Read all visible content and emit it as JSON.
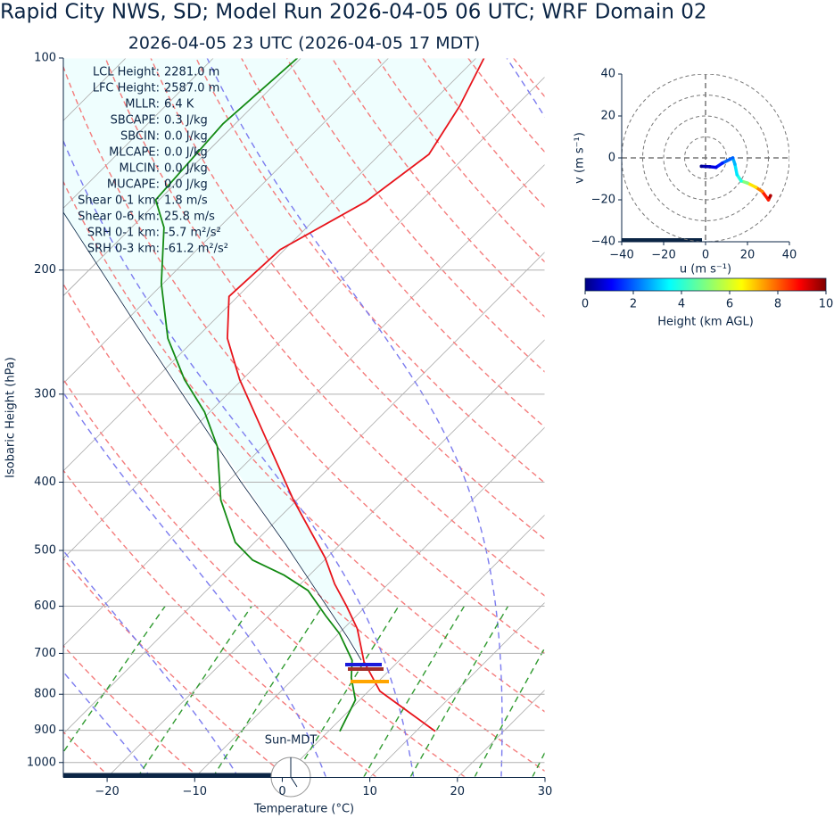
{
  "chart_data": [
    {
      "type": "skewt",
      "title": "Rapid City NWS, SD; Model Run 2026-04-05 06 UTC; WRF Domain 02",
      "subtitle": "2026-04-05 23 UTC  (2026-04-05 17 MDT)",
      "x_label": "Temperature (°C)",
      "y_label": "Isobaric Height (hPa)",
      "time_label": "Sun-MDT",
      "xlim": [
        -25,
        30
      ],
      "xticks": [
        {
          "value": -20,
          "label": "−20"
        },
        {
          "value": -10,
          "label": "−10"
        },
        0,
        10,
        20,
        30
      ],
      "ylim": [
        1050,
        100
      ],
      "yticks": [
        100,
        200,
        300,
        400,
        500,
        600,
        700,
        800,
        900,
        1000
      ],
      "log_y": true,
      "grid": true,
      "stats": [
        {
          "key": "LCL Height:",
          "value": "2281.0 m"
        },
        {
          "key": "LFC Height:",
          "value": "2587.0 m"
        },
        {
          "key": "MLLR:",
          "value": "6.4 K"
        },
        {
          "key": "SBCAPE:",
          "value": "0.3 J/kg"
        },
        {
          "key": "SBCIN:",
          "value": "0.0 J/kg"
        },
        {
          "key": "MLCAPE:",
          "value": "0.0 J/kg"
        },
        {
          "key": "MLCIN:",
          "value": "0.0 J/kg"
        },
        {
          "key": "MUCAPE:",
          "value": "0.0 J/kg"
        },
        {
          "key": "Shear 0-1 km:",
          "value": "1.8 m/s"
        },
        {
          "key": "Shear 0-6 km:",
          "value": "25.8 m/s"
        },
        {
          "key": "SRH 0-1 km:",
          "value": "-5.7 m²/s²"
        },
        {
          "key": "SRH 0-3 km:",
          "value": "-61.2 m²/s²"
        }
      ],
      "series": [
        {
          "name": "Temperature",
          "color": "#e8141b",
          "pressure": [
            903,
            792,
            719,
            646,
            600,
            558,
            512,
            424,
            350,
            286,
            250,
            218,
            187,
            160,
            137,
            117,
            100
          ],
          "values": [
            12.2,
            1.3,
            -3.9,
            -8.4,
            -12.2,
            -16.1,
            -20.2,
            -30.4,
            -40.1,
            -50.3,
            -56.4,
            -61,
            -60.5,
            -56.2,
            -54.4,
            -56.4,
            -59.1
          ]
        },
        {
          "name": "Dewpoint",
          "color": "#138a13",
          "pressure": [
            903,
            815,
            758,
            716,
            656,
            619,
            570,
            542,
            516,
            487,
            424,
            356,
            318,
            286,
            250,
            209,
            174,
            159,
            124,
            100
          ],
          "values": [
            1.3,
            -0.5,
            -3.5,
            -5.4,
            -9.9,
            -13.5,
            -18.4,
            -22.9,
            -28.2,
            -32.2,
            -38.7,
            -45.2,
            -50.6,
            -56.6,
            -63.2,
            -70.2,
            -76.3,
            -80.4,
            -81.4,
            -80.4
          ]
        }
      ]
    },
    {
      "type": "hodograph",
      "x_label": "u (m s⁻¹)",
      "y_label": "v (m s⁻¹)",
      "xlim": [
        -40,
        40
      ],
      "xticks": [
        {
          "value": -40,
          "label": "−40"
        },
        {
          "value": -20,
          "label": "−20"
        },
        0,
        20,
        40
      ],
      "ylim": [
        -40,
        40
      ],
      "yticks": [
        {
          "value": -40,
          "label": "−40"
        },
        {
          "value": -20,
          "label": "−20"
        },
        0,
        20,
        40
      ],
      "u": [
        -2,
        2,
        5,
        8,
        13,
        14,
        15,
        17,
        20,
        24,
        27,
        30,
        31
      ],
      "values": [
        -4,
        -4.2,
        -4.5,
        -2.5,
        0,
        -3,
        -8,
        -11,
        -12,
        -14,
        -16,
        -20,
        -18
      ],
      "height_km": [
        0.1,
        0.5,
        1,
        1.5,
        2.2,
        3,
        3.5,
        4,
        5,
        6.5,
        7.5,
        8.5,
        9.5
      ]
    },
    {
      "type": "colorbar",
      "label": "Height (km AGL)",
      "xlim": [
        0,
        10
      ],
      "xticks": [
        0,
        2,
        4,
        6,
        8,
        10
      ]
    }
  ]
}
